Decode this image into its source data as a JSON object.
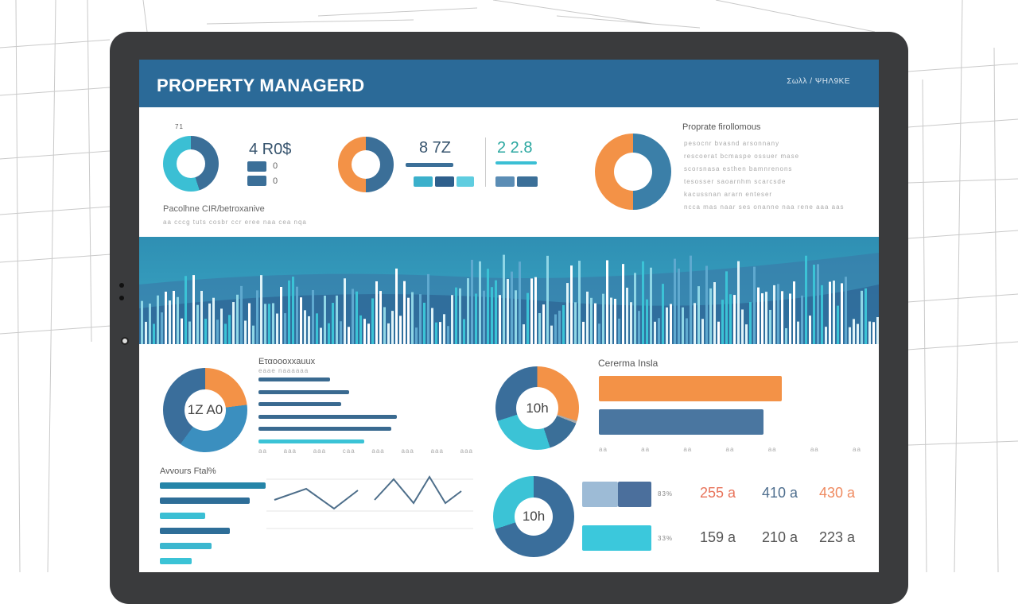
{
  "header": {
    "title": "PROPERTY MANAGERD",
    "right_label": "Σωλλ / ΨΗΛ9ΚΕ"
  },
  "top": {
    "donut1_label": "71",
    "stat1": "4 R0$",
    "stat1_rows": [
      "0",
      "0"
    ],
    "caption": "Pacolhne CIR/betroxanive",
    "caption_sub": "aa  cccg  tuts  cosbr  ccr  eree  naa  cea  nqa",
    "stat2": "8 7Z",
    "stat3": "2 2.8",
    "legend_title": "Proprate firollomous",
    "legend_items": [
      "pesocnr bvasnd arsonnany",
      "rescoerat bcmaspe ossuer mase",
      "scorsnasa esthen bamnrenons",
      "tesosser saoarnhm scarcsde",
      "kacussnan ararn enteser",
      "ncca  mas  naar  ses  onanne  naa  rene  aaa  aas"
    ]
  },
  "lower_left": {
    "center": "1Z A0",
    "title": "Εταoooxxauux",
    "subtitle": "eaae  naaaaaa",
    "axis": [
      "aa",
      "aaa",
      "aaa",
      "caa",
      "aaa",
      "aaa",
      "aaa",
      "aaa"
    ],
    "bars": [
      0.46,
      0.58,
      0.53,
      0.89,
      0.85,
      0.68
    ]
  },
  "lower_mid": {
    "center": "10h",
    "title": "Cererma Insla",
    "bars": [
      1.0,
      0.9
    ],
    "axis": [
      "aa",
      "aa",
      "aa",
      "aa",
      "aa",
      "aa",
      "aa"
    ]
  },
  "bottom_left": {
    "title": "Avvours Ftal%",
    "bars": [
      1.0,
      0.85,
      0.43,
      0.66,
      0.49,
      0.3
    ]
  },
  "bottom_right": {
    "center": "10h",
    "rows": [
      {
        "pct": "83%",
        "values": [
          "255 a",
          "410 a",
          "430 a"
        ]
      },
      {
        "pct": "33%",
        "values": [
          "159 a",
          "210 a",
          "223 a"
        ]
      }
    ]
  },
  "colors": {
    "header": "#2b6a98",
    "orange": "#f39247",
    "teal": "#3bbfd4",
    "navy": "#3b6f98",
    "dark_blue": "#2e5f8c"
  }
}
